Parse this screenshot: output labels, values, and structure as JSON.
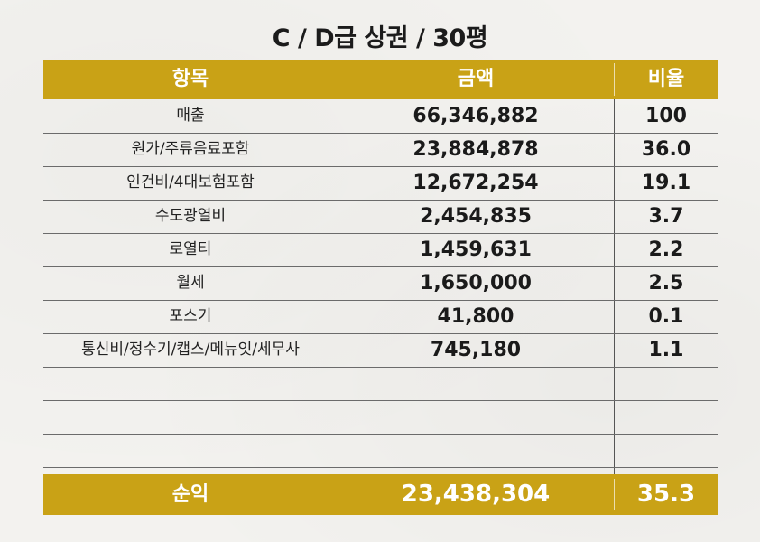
{
  "title": "C / D급 상권 / 30평",
  "table": {
    "headers": [
      "항목",
      "금액",
      "비율"
    ],
    "rows": [
      {
        "item": "매출",
        "amount": "66,346,882",
        "ratio": "100"
      },
      {
        "item": "원가/주류음료포함",
        "amount": "23,884,878",
        "ratio": "36.0"
      },
      {
        "item": "인건비/4대보험포함",
        "amount": "12,672,254",
        "ratio": "19.1"
      },
      {
        "item": "수도광열비",
        "amount": "2,454,835",
        "ratio": "3.7"
      },
      {
        "item": "로열티",
        "amount": "1,459,631",
        "ratio": "2.2"
      },
      {
        "item": "월세",
        "amount": "1,650,000",
        "ratio": "2.5"
      },
      {
        "item": "포스기",
        "amount": "41,800",
        "ratio": "0.1"
      },
      {
        "item": "통신비/정수기/캡스/메뉴잇/세무사",
        "amount": "745,180",
        "ratio": "1.1"
      },
      {
        "item": "",
        "amount": "",
        "ratio": ""
      },
      {
        "item": "",
        "amount": "",
        "ratio": ""
      },
      {
        "item": "",
        "amount": "",
        "ratio": ""
      }
    ],
    "footer": {
      "item": "순익",
      "amount": "23,438,304",
      "ratio": "35.3"
    }
  },
  "colors": {
    "header_bg": "#c9a216",
    "header_text": "#ffffff",
    "line": "#6b6b6b"
  }
}
